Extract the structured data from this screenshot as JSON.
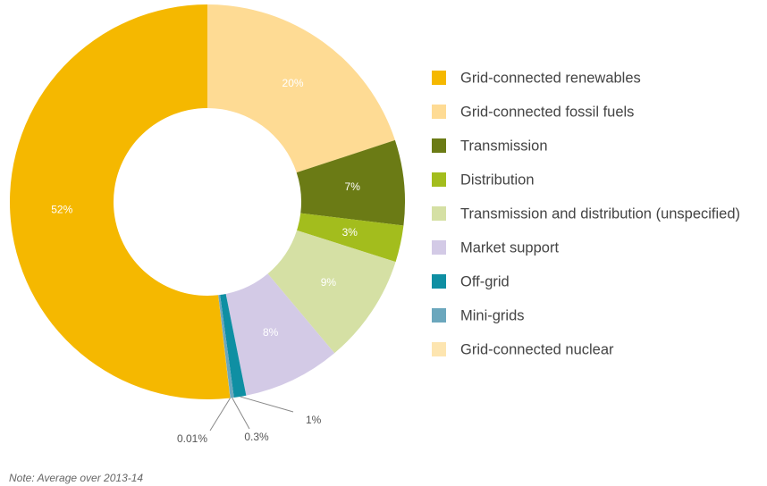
{
  "chart_data": {
    "type": "donut",
    "categories": [
      "Grid-connected renewables",
      "Grid-connected fossil fuels",
      "Transmission",
      "Distribution",
      "Transmission and distribution (unspecified)",
      "Market support",
      "Off-grid",
      "Mini-grids",
      "Grid-connected nuclear"
    ],
    "values": [
      52,
      20,
      7,
      3,
      9,
      8,
      1,
      0.3,
      0.01
    ],
    "value_labels": [
      "52%",
      "20%",
      "7%",
      "3%",
      "9%",
      "8%",
      "1%",
      "0.3%",
      "0.01%"
    ],
    "colors": [
      "#f5b800",
      "#fedb94",
      "#6b7b15",
      "#a3bd1d",
      "#d5e0a4",
      "#d3cae6",
      "#0f8fa3",
      "#6ba7bd",
      "#fde5b0"
    ],
    "legend": "right",
    "note": "Note: Average over 2013-14"
  }
}
